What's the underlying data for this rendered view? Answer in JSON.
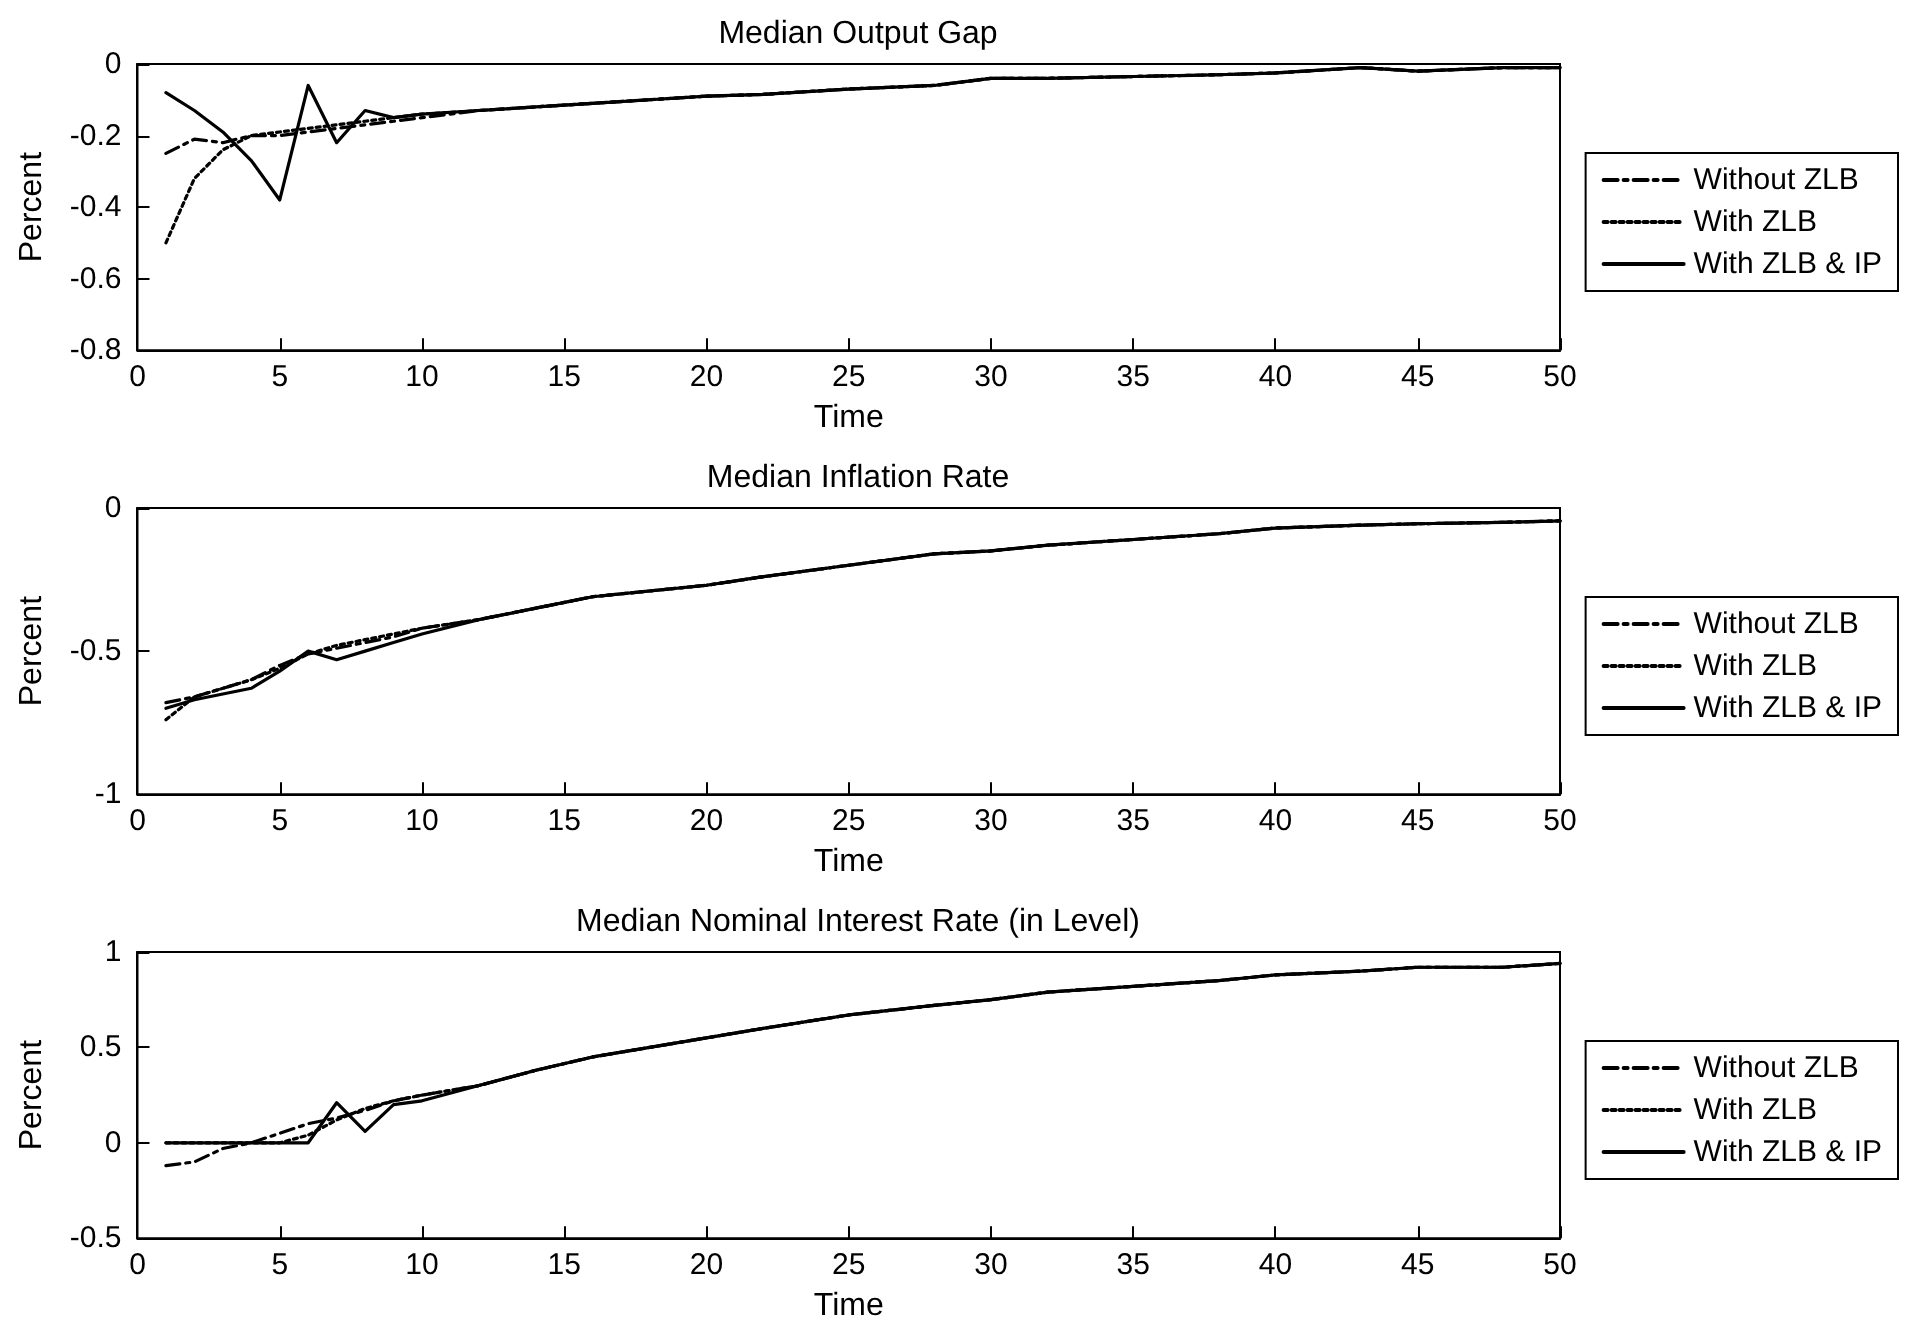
{
  "chart_data": [
    {
      "type": "line",
      "title": "Median Output Gap",
      "xlabel": "Time",
      "ylabel": "Percent",
      "xlim": [
        0,
        50
      ],
      "xticks": [
        0,
        5,
        10,
        15,
        20,
        25,
        30,
        35,
        40,
        45,
        50
      ],
      "ylim": [
        -0.8,
        0
      ],
      "yticks": [
        -0.8,
        -0.6,
        -0.4,
        -0.2,
        0
      ],
      "legend": "right",
      "grid": false,
      "x": [
        1,
        2,
        3,
        4,
        5,
        6,
        7,
        8,
        9,
        10,
        12,
        14,
        16,
        18,
        20,
        22,
        25,
        28,
        30,
        32,
        35,
        38,
        40,
        43,
        45,
        48,
        50
      ],
      "series": [
        {
          "name": "Without ZLB",
          "color": "#000000",
          "line_style": "dashed",
          "values": [
            -0.25,
            -0.21,
            -0.22,
            -0.2,
            -0.2,
            -0.19,
            -0.18,
            -0.17,
            -0.16,
            -0.15,
            -0.13,
            -0.12,
            -0.11,
            -0.1,
            -0.09,
            -0.085,
            -0.07,
            -0.06,
            -0.04,
            -0.04,
            -0.035,
            -0.03,
            -0.025,
            -0.01,
            -0.02,
            -0.01,
            -0.01
          ]
        },
        {
          "name": "With ZLB",
          "color": "#000000",
          "line_style": "dotted",
          "values": [
            -0.5,
            -0.32,
            -0.24,
            -0.2,
            -0.19,
            -0.18,
            -0.17,
            -0.16,
            -0.15,
            -0.14,
            -0.13,
            -0.12,
            -0.11,
            -0.1,
            -0.09,
            -0.085,
            -0.07,
            -0.06,
            -0.04,
            -0.04,
            -0.035,
            -0.03,
            -0.025,
            -0.01,
            -0.02,
            -0.01,
            -0.01
          ]
        },
        {
          "name": "With ZLB & IP",
          "color": "#000000",
          "line_style": "solid",
          "values": [
            -0.08,
            -0.13,
            -0.19,
            -0.27,
            -0.38,
            -0.06,
            -0.22,
            -0.13,
            -0.15,
            -0.14,
            -0.13,
            -0.12,
            -0.11,
            -0.1,
            -0.09,
            -0.085,
            -0.07,
            -0.06,
            -0.04,
            -0.04,
            -0.035,
            -0.03,
            -0.025,
            -0.01,
            -0.02,
            -0.01,
            -0.01
          ]
        }
      ]
    },
    {
      "type": "line",
      "title": "Median Inflation Rate",
      "xlabel": "Time",
      "ylabel": "Percent",
      "xlim": [
        0,
        50
      ],
      "xticks": [
        0,
        5,
        10,
        15,
        20,
        25,
        30,
        35,
        40,
        45,
        50
      ],
      "ylim": [
        -1,
        0
      ],
      "yticks": [
        -1,
        -0.5,
        0
      ],
      "legend": "right",
      "grid": false,
      "x": [
        1,
        2,
        3,
        4,
        5,
        6,
        7,
        8,
        9,
        10,
        12,
        14,
        16,
        18,
        20,
        22,
        25,
        28,
        30,
        32,
        35,
        38,
        40,
        43,
        45,
        48,
        50
      ],
      "series": [
        {
          "name": "Without ZLB",
          "color": "#000000",
          "line_style": "dashed",
          "values": [
            -0.68,
            -0.66,
            -0.63,
            -0.6,
            -0.55,
            -0.51,
            -0.49,
            -0.47,
            -0.45,
            -0.42,
            -0.39,
            -0.35,
            -0.31,
            -0.29,
            -0.27,
            -0.24,
            -0.2,
            -0.16,
            -0.15,
            -0.13,
            -0.11,
            -0.09,
            -0.07,
            -0.06,
            -0.055,
            -0.05,
            -0.045
          ]
        },
        {
          "name": "With ZLB",
          "color": "#000000",
          "line_style": "dotted",
          "values": [
            -0.74,
            -0.66,
            -0.63,
            -0.6,
            -0.56,
            -0.51,
            -0.48,
            -0.46,
            -0.44,
            -0.42,
            -0.39,
            -0.35,
            -0.31,
            -0.29,
            -0.27,
            -0.24,
            -0.2,
            -0.16,
            -0.15,
            -0.13,
            -0.11,
            -0.09,
            -0.07,
            -0.06,
            -0.055,
            -0.05,
            -0.045
          ]
        },
        {
          "name": "With ZLB & IP",
          "color": "#000000",
          "line_style": "solid",
          "values": [
            -0.7,
            -0.67,
            -0.65,
            -0.63,
            -0.57,
            -0.5,
            -0.53,
            -0.5,
            -0.47,
            -0.44,
            -0.39,
            -0.35,
            -0.31,
            -0.29,
            -0.27,
            -0.24,
            -0.2,
            -0.16,
            -0.15,
            -0.13,
            -0.11,
            -0.09,
            -0.07,
            -0.06,
            -0.055,
            -0.05,
            -0.045
          ]
        }
      ]
    },
    {
      "type": "line",
      "title": "Median Nominal Interest Rate (in Level)",
      "xlabel": "Time",
      "ylabel": "Percent",
      "xlim": [
        0,
        50
      ],
      "xticks": [
        0,
        5,
        10,
        15,
        20,
        25,
        30,
        35,
        40,
        45,
        50
      ],
      "ylim": [
        -0.5,
        1
      ],
      "yticks": [
        -0.5,
        0,
        0.5,
        1
      ],
      "legend": "right",
      "grid": false,
      "x": [
        1,
        2,
        3,
        4,
        5,
        6,
        7,
        8,
        9,
        10,
        12,
        14,
        16,
        18,
        20,
        22,
        25,
        28,
        30,
        32,
        35,
        38,
        40,
        43,
        45,
        48,
        50
      ],
      "series": [
        {
          "name": "Without ZLB",
          "color": "#000000",
          "line_style": "dashed",
          "values": [
            -0.12,
            -0.1,
            -0.03,
            0,
            0.05,
            0.1,
            0.13,
            0.17,
            0.22,
            0.25,
            0.3,
            0.38,
            0.45,
            0.5,
            0.55,
            0.6,
            0.67,
            0.72,
            0.75,
            0.79,
            0.82,
            0.85,
            0.88,
            0.9,
            0.92,
            0.92,
            0.94
          ]
        },
        {
          "name": "With ZLB",
          "color": "#000000",
          "line_style": "dotted",
          "values": [
            0,
            0,
            0,
            0,
            0,
            0.04,
            0.12,
            0.18,
            0.22,
            0.25,
            0.3,
            0.38,
            0.45,
            0.5,
            0.55,
            0.6,
            0.67,
            0.72,
            0.75,
            0.79,
            0.82,
            0.85,
            0.88,
            0.9,
            0.92,
            0.92,
            0.94
          ]
        },
        {
          "name": "With ZLB & IP",
          "color": "#000000",
          "line_style": "solid",
          "values": [
            0,
            0,
            0,
            0,
            0,
            0,
            0.21,
            0.06,
            0.2,
            0.22,
            0.3,
            0.38,
            0.45,
            0.5,
            0.55,
            0.6,
            0.67,
            0.72,
            0.75,
            0.79,
            0.82,
            0.85,
            0.88,
            0.9,
            0.92,
            0.92,
            0.94
          ]
        }
      ]
    }
  ]
}
